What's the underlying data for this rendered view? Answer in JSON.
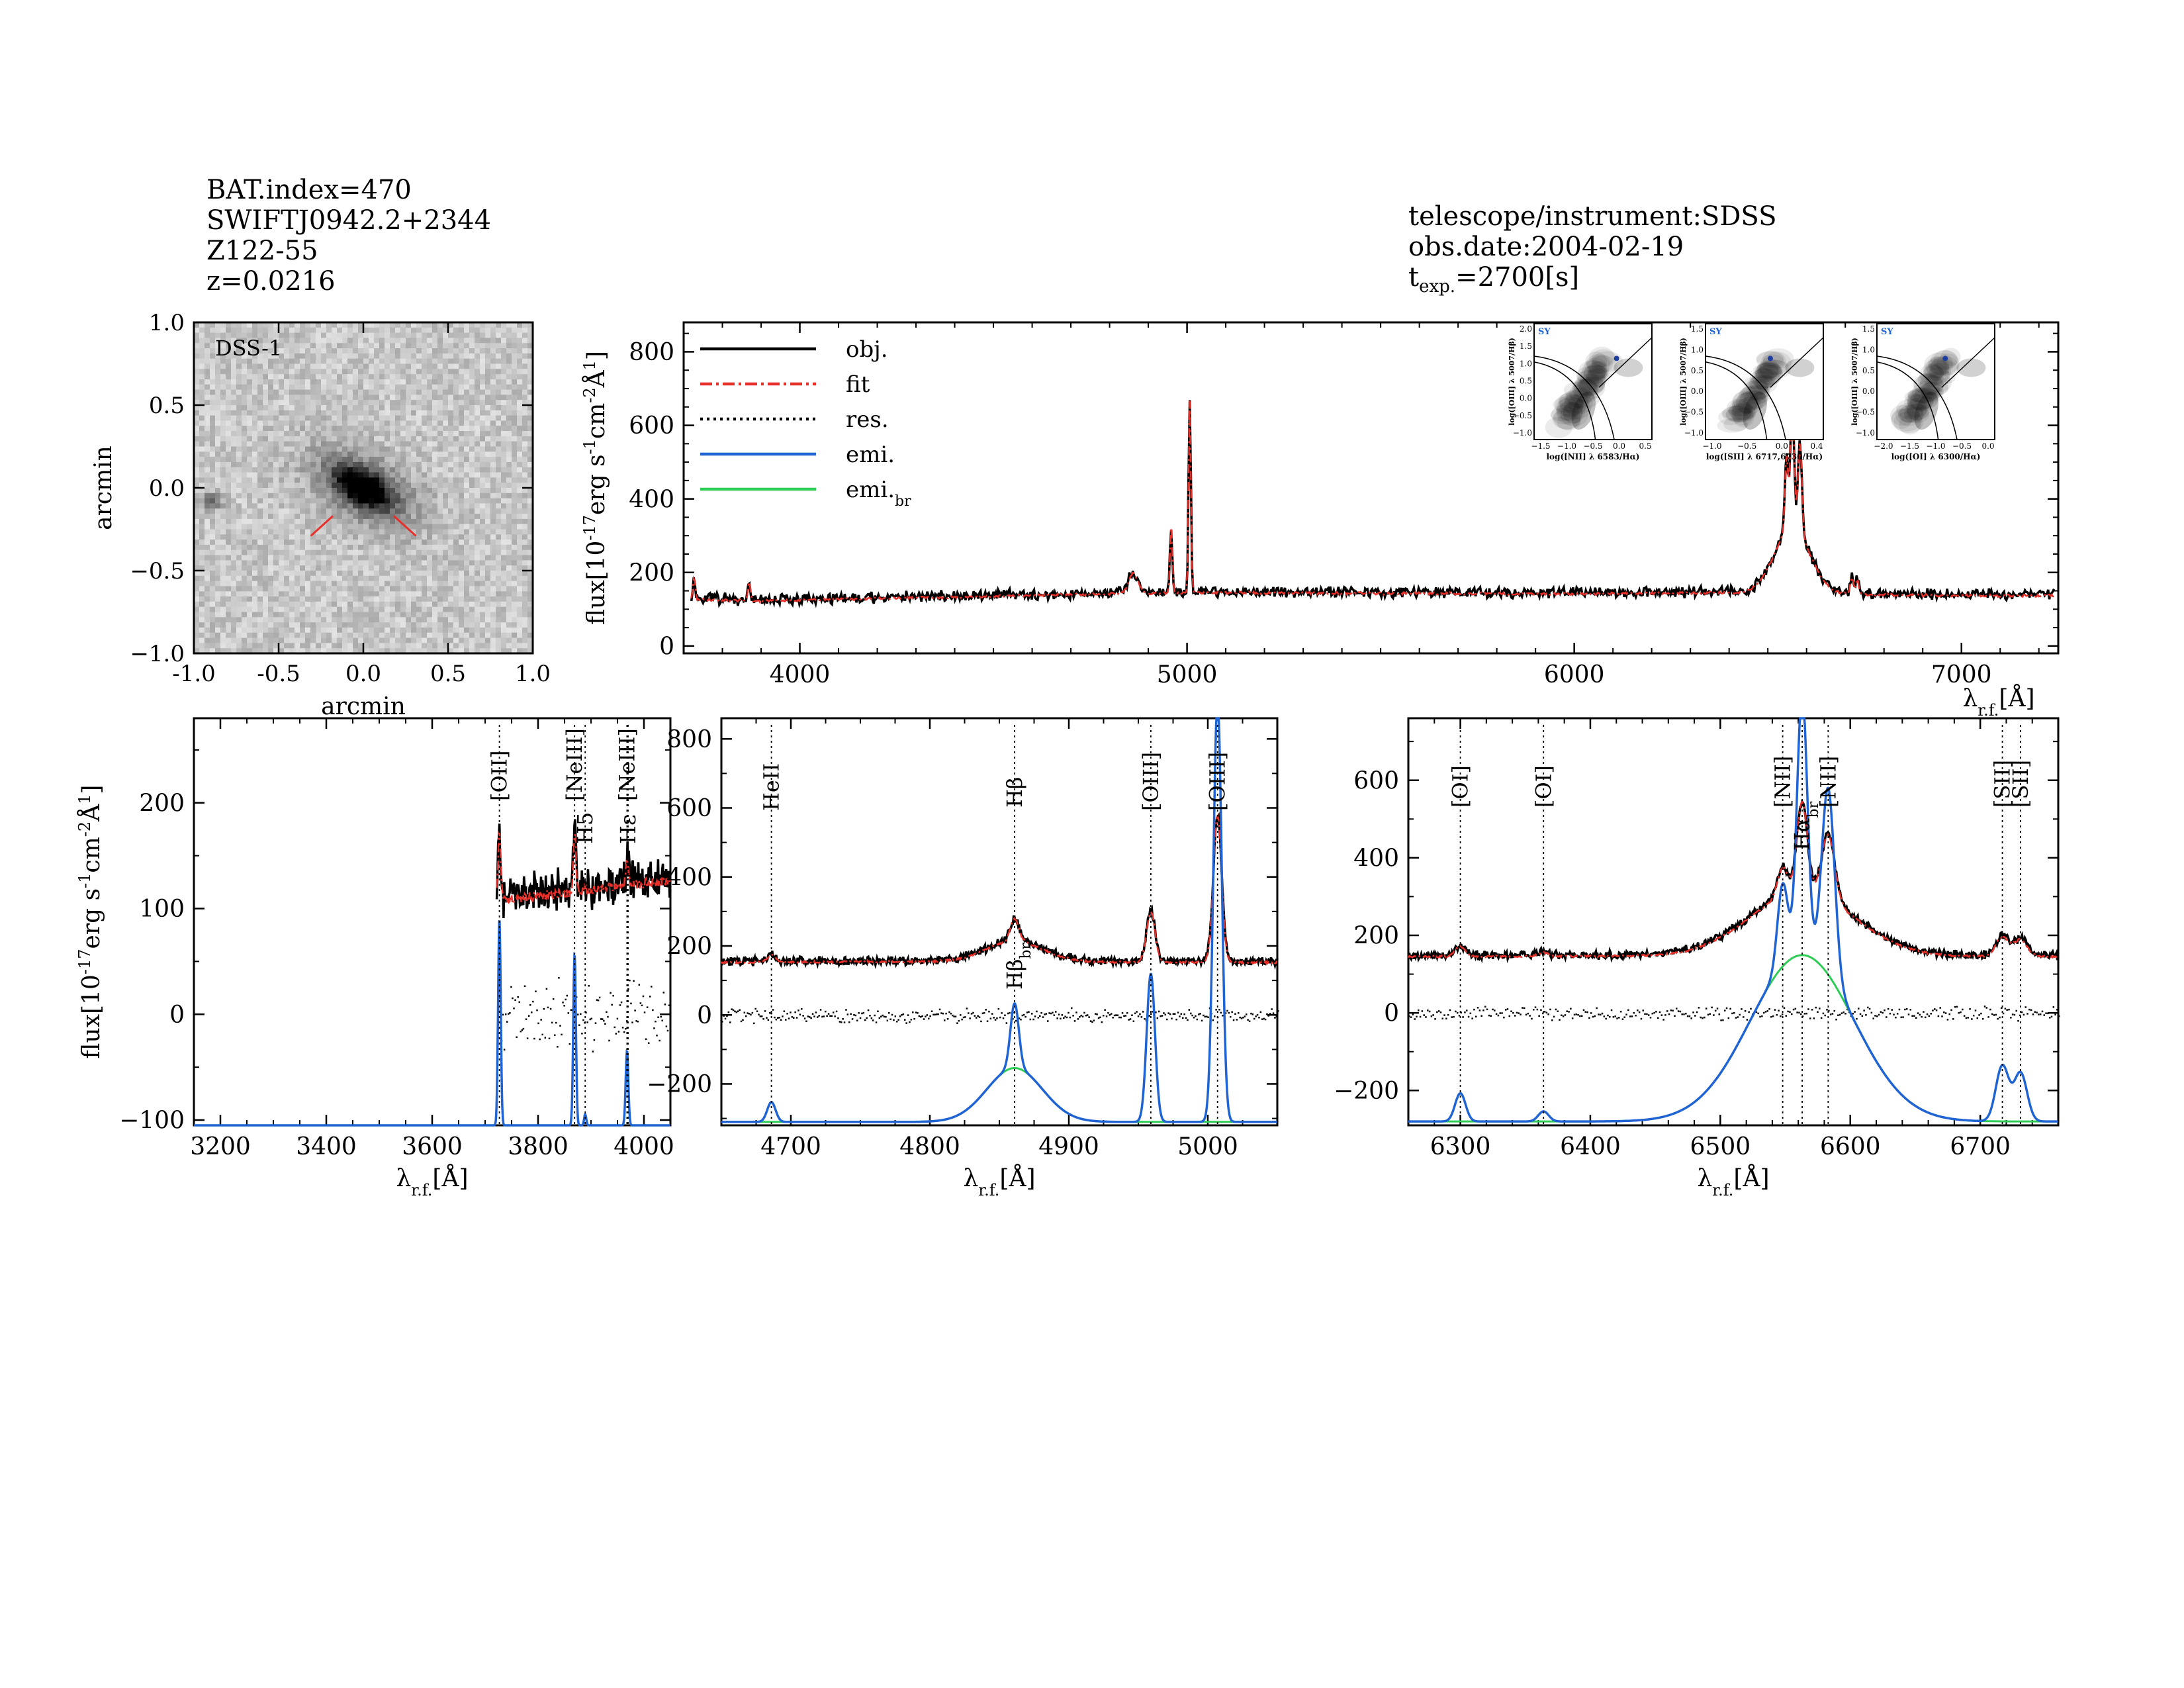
{
  "header_left": {
    "bat_index": "BAT.index=470",
    "swift_name": "SWIFTJ0942.2+2344",
    "counterpart": "Z122-55",
    "redshift": "z=0.0216"
  },
  "header_right": {
    "instrument": "telescope/instrument:SDSS",
    "obs_date": "obs.date:2004-02-19",
    "exposure_prefix": "t",
    "exposure_sub": "exp.",
    "exposure_value": "=2700[s]"
  },
  "image_panel": {
    "label": "DSS-1",
    "xlabel": "arcmin",
    "ylabel": "arcmin",
    "xticks": [
      "-1.0",
      "-0.5",
      "0.0",
      "0.5",
      "1.0"
    ],
    "yticks": [
      "1.0",
      "0.5",
      "0.0",
      "-0.5",
      "-1.0"
    ]
  },
  "legend": [
    {
      "label": "obj.",
      "color": "#000000",
      "style": "solid"
    },
    {
      "label": "fit",
      "color": "#e8302a",
      "style": "dashdot"
    },
    {
      "label": "res.",
      "color": "#000000",
      "style": "dotted"
    },
    {
      "label": "emi.",
      "color": "#1f64d2",
      "style": "solid"
    },
    {
      "label": "emi.",
      "sub": "br",
      "color": "#2ecc55",
      "style": "solid"
    }
  ],
  "flux_label": {
    "prefix": "flux[10",
    "exp": "-17",
    "mid": "erg s",
    "exp2": "-1",
    "mid2": "cm",
    "exp3": "-2",
    "mid3": "Å",
    "exp4": "1",
    "suffix": "]"
  },
  "lambda_label": {
    "prefix": "λ",
    "sub": "r.f.",
    "suffix": "[Å]"
  },
  "colors": {
    "obj": "#000000",
    "fit": "#e8302a",
    "emi": "#1f64d2",
    "emi_br": "#2ecc55",
    "marker": "#1f3fa0"
  },
  "bpt": [
    {
      "xlabel": "log([NII] λ 6583/Hα)",
      "ylabel": "log([OIII] λ 5007/Hβ)",
      "tag": "SY",
      "xticks": [
        "-1.5",
        "-1.0",
        "-0.5",
        "0.0",
        "0.5"
      ],
      "yticks": [
        "2.0",
        "1.5",
        "1.0",
        "0.5",
        "0.0",
        "-0.5",
        "-1.0"
      ],
      "point": [
        -0.15,
        0.75
      ]
    },
    {
      "xlabel": "log([SII] λ 6717,6730/Hα)",
      "ylabel": "log([OIII] λ 5007/Hβ)",
      "tag": "SY",
      "xticks": [
        "-1.0",
        "-0.5",
        "0.0",
        "0.4"
      ],
      "yticks": [
        "1.5",
        "1.0",
        "0.5",
        "0.0",
        "-0.5",
        "-1.0"
      ],
      "point": [
        -0.4,
        0.85
      ]
    },
    {
      "xlabel": "log([OI] λ 6300/Hα)",
      "ylabel": "log([OIII] λ 5007/Hβ)",
      "tag": "SY",
      "xticks": [
        "-2.0",
        "-1.5",
        "-1.0",
        "-0.5",
        "0.0"
      ],
      "yticks": [
        "1.5",
        "1.0",
        "0.5",
        "0.0",
        "-0.5",
        "-1.0"
      ],
      "point": [
        -1.0,
        0.85
      ]
    }
  ],
  "chart_data": [
    {
      "type": "line",
      "panel": "full-spectrum",
      "xlim": [
        3700,
        7250
      ],
      "ylim": [
        -20,
        880
      ],
      "xticks": [
        4000,
        5000,
        6000,
        7000
      ],
      "yticks": [
        0,
        200,
        400,
        600,
        800
      ],
      "continuum": [
        [
          3720,
          130
        ],
        [
          3900,
          125
        ],
        [
          4200,
          132
        ],
        [
          4500,
          138
        ],
        [
          4800,
          145
        ],
        [
          5100,
          148
        ],
        [
          5500,
          146
        ],
        [
          6000,
          145
        ],
        [
          6400,
          148
        ],
        [
          7000,
          140
        ],
        [
          7250,
          140
        ]
      ],
      "lines": [
        {
          "center": 3727,
          "amp": 60,
          "sigma": 3
        },
        {
          "center": 3869,
          "amp": 55,
          "sigma": 3
        },
        {
          "center": 4861,
          "amp": 55,
          "sigma": 12
        },
        {
          "center": 4959,
          "amp": 180,
          "sigma": 3
        },
        {
          "center": 5007,
          "amp": 520,
          "sigma": 3
        },
        {
          "center": 6548,
          "amp": 200,
          "sigma": 4
        },
        {
          "center": 6563,
          "amp": 330,
          "sigma": 5
        },
        {
          "center": 6583,
          "amp": 250,
          "sigma": 5
        },
        {
          "center": 6563,
          "amp": 180,
          "sigma": 45
        },
        {
          "center": 6717,
          "amp": 45,
          "sigma": 4
        },
        {
          "center": 6731,
          "amp": 40,
          "sigma": 4
        }
      ]
    },
    {
      "type": "line",
      "panel": "zoom-OII",
      "xlim": [
        3150,
        4050
      ],
      "ylim": [
        -105,
        280
      ],
      "xticks": [
        3200,
        3400,
        3600,
        3800,
        4000
      ],
      "yticks": [
        -100,
        0,
        100,
        200
      ],
      "data_start": 3722,
      "continuum": [
        [
          3722,
          110
        ],
        [
          3800,
          115
        ],
        [
          3900,
          120
        ],
        [
          4050,
          130
        ]
      ],
      "markers": [
        {
          "x": 3727,
          "label": "[OII]"
        },
        {
          "x": 3869,
          "label": "[NeIII]"
        },
        {
          "x": 3889,
          "label": "H5"
        },
        {
          "x": 3968,
          "label": "[NeIII]"
        },
        {
          "x": 3970,
          "label": "Hε"
        }
      ],
      "emission_offset": -105,
      "emission": [
        {
          "center": 3727,
          "amp": 75,
          "sigma": 2.5
        },
        {
          "center": 3869,
          "amp": 62,
          "sigma": 2.5
        },
        {
          "center": 3889,
          "amp": 4,
          "sigma": 2
        },
        {
          "center": 3968,
          "amp": 27,
          "sigma": 2.5
        }
      ]
    },
    {
      "type": "line",
      "panel": "zoom-Hbeta-OIII",
      "xlim": [
        4650,
        5050
      ],
      "ylim": [
        -320,
        860
      ],
      "xticks": [
        4700,
        4800,
        4900,
        5000
      ],
      "yticks": [
        -200,
        0,
        200,
        400,
        600,
        800
      ],
      "continuum": [
        [
          4650,
          155
        ],
        [
          4800,
          158
        ],
        [
          5050,
          155
        ]
      ],
      "markers": [
        {
          "x": 4686,
          "label": "HeII"
        },
        {
          "x": 4861,
          "label": "Hβ"
        },
        {
          "x": 4959,
          "label": "[OIII]"
        },
        {
          "x": 5007,
          "label": "[OIII]"
        }
      ],
      "broad_label": {
        "x": 4861,
        "label": "Hβ",
        "sub": "br"
      },
      "emission_offset": -310,
      "emission": [
        {
          "center": 4686,
          "amp": 22,
          "sigma": 3
        },
        {
          "center": 4861,
          "amp": 72,
          "sigma": 3
        },
        {
          "center": 4959,
          "amp": 165,
          "sigma": 3
        },
        {
          "center": 5007,
          "amp": 470,
          "sigma": 3
        }
      ],
      "broad": [
        {
          "center": 4861,
          "amp": 60,
          "sigma": 20
        }
      ]
    },
    {
      "type": "line",
      "panel": "zoom-Halpha",
      "xlim": [
        6260,
        6760
      ],
      "ylim": [
        -290,
        760
      ],
      "xticks": [
        6300,
        6400,
        6500,
        6600,
        6700
      ],
      "yticks": [
        -200,
        0,
        200,
        400,
        600
      ],
      "continuum": [
        [
          6260,
          148
        ],
        [
          6500,
          150
        ],
        [
          6760,
          148
        ]
      ],
      "markers": [
        {
          "x": 6300,
          "label": "[OI]"
        },
        {
          "x": 6364,
          "label": "[OI]"
        },
        {
          "x": 6548,
          "label": "[NII]"
        },
        {
          "x": 6563,
          "label": "Hα"
        },
        {
          "x": 6583,
          "label": "[NII]"
        },
        {
          "x": 6717,
          "label": "[SII]"
        },
        {
          "x": 6731,
          "label": "[SII]"
        }
      ],
      "broad_label": {
        "x": 6563,
        "label": "Hα",
        "sub": "br"
      },
      "emission_offset": -280,
      "emission": [
        {
          "center": 6300,
          "amp": 28,
          "sigma": 4
        },
        {
          "center": 6364,
          "amp": 10,
          "sigma": 4
        },
        {
          "center": 6548,
          "amp": 82,
          "sigma": 4
        },
        {
          "center": 6563,
          "amp": 260,
          "sigma": 4
        },
        {
          "center": 6583,
          "amp": 185,
          "sigma": 5
        },
        {
          "center": 6717,
          "amp": 55,
          "sigma": 5
        },
        {
          "center": 6731,
          "amp": 48,
          "sigma": 5
        }
      ],
      "broad": [
        {
          "center": 6563,
          "amp": 165,
          "sigma": 40
        }
      ]
    }
  ]
}
